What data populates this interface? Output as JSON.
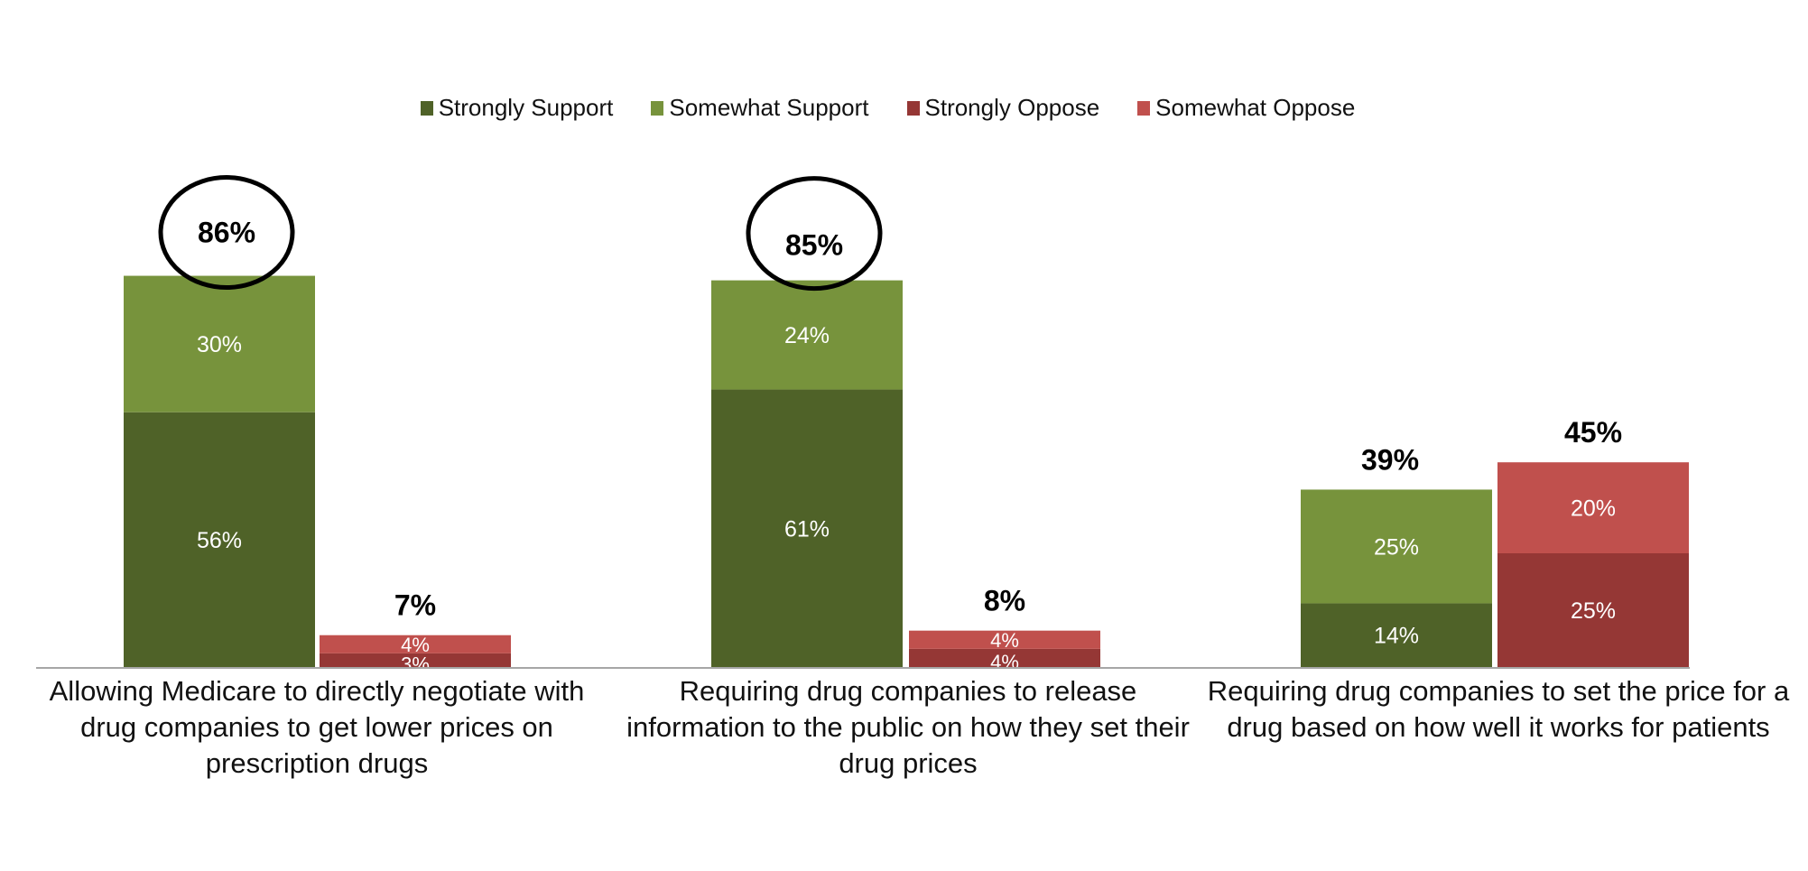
{
  "chart_data": {
    "type": "stacked-bar",
    "legend_position": "top",
    "grid": false,
    "ylim": [
      0,
      90
    ],
    "legend": [
      {
        "name": "Strongly Support",
        "color": "#4f6228"
      },
      {
        "name": "Somewhat Support",
        "color": "#77933c"
      },
      {
        "name": "Strongly Oppose",
        "color": "#953735"
      },
      {
        "name": "Somewhat Oppose",
        "color": "#c0504d"
      }
    ],
    "categories": [
      "Allowing Medicare to directly negotiate with drug companies to get lower prices on prescription drugs",
      "Requiring drug companies to release information to the public on how they set their drug prices",
      "Requiring drug companies to set the price for a drug based on how well it works for patients"
    ],
    "groups": [
      {
        "support": {
          "strongly": 56,
          "somewhat": 30,
          "total": 86,
          "labels": [
            "56%",
            "30%"
          ],
          "total_label": "86%",
          "circled": true
        },
        "oppose": {
          "strongly": 3,
          "somewhat": 4,
          "total": 7,
          "labels": [
            "3%",
            "4%"
          ],
          "total_label": "7%"
        }
      },
      {
        "support": {
          "strongly": 61,
          "somewhat": 24,
          "total": 85,
          "labels": [
            "61%",
            "24%"
          ],
          "total_label": "85%",
          "circled": true
        },
        "oppose": {
          "strongly": 4,
          "somewhat": 4,
          "total": 8,
          "labels": [
            "4%",
            "4%"
          ],
          "total_label": "8%"
        }
      },
      {
        "support": {
          "strongly": 14,
          "somewhat": 25,
          "total": 39,
          "labels": [
            "14%",
            "25%"
          ],
          "total_label": "39%",
          "circled": false
        },
        "oppose": {
          "strongly": 25,
          "somewhat": 20,
          "total": 45,
          "labels": [
            "25%",
            "20%"
          ],
          "total_label": "45%"
        }
      }
    ]
  }
}
